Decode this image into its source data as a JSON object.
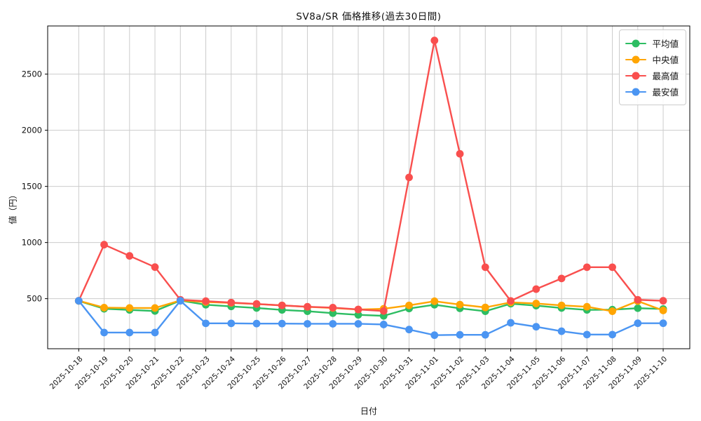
{
  "title": "SV8a/SR 価格推移(過去30日間)",
  "xlabel": "日付",
  "ylabel": "値（円）",
  "chart_data": {
    "type": "line",
    "x": [
      "2025-10-18",
      "2025-10-19",
      "2025-10-20",
      "2025-10-21",
      "2025-10-22",
      "2025-10-23",
      "2025-10-24",
      "2025-10-25",
      "2025-10-26",
      "2025-10-27",
      "2025-10-28",
      "2025-10-29",
      "2025-10-30",
      "2025-10-31",
      "2025-11-01",
      "2025-11-02",
      "2025-11-03",
      "2025-11-04",
      "2025-11-05",
      "2025-11-06",
      "2025-11-07",
      "2025-11-08",
      "2025-11-09",
      "2025-11-10"
    ],
    "series": [
      {
        "name": "平均値",
        "color": "#2dbd62",
        "values": [
          480,
          410,
          400,
          390,
          483,
          446,
          431,
          417,
          400,
          388,
          371,
          356,
          347,
          412,
          446,
          414,
          388,
          455,
          438,
          417,
          400,
          402,
          415,
          408
        ]
      },
      {
        "name": "中央値",
        "color": "#ffa502",
        "values": [
          481,
          420,
          417,
          417,
          484,
          470,
          462,
          452,
          440,
          427,
          417,
          403,
          410,
          440,
          477,
          447,
          422,
          467,
          457,
          440,
          428,
          388,
          478,
          395
        ]
      },
      {
        "name": "最高値",
        "color": "#f94f4e",
        "values": [
          481,
          981,
          881,
          781,
          490,
          478,
          465,
          453,
          440,
          428,
          420,
          404,
          390,
          1580,
          2800,
          1790,
          780,
          480,
          585,
          680,
          780,
          780,
          490,
          481
        ]
      },
      {
        "name": "最安値",
        "color": "#4b95f2",
        "values": [
          481,
          198,
          198,
          198,
          481,
          280,
          280,
          278,
          278,
          276,
          276,
          276,
          270,
          225,
          175,
          178,
          178,
          285,
          250,
          210,
          180,
          180,
          281,
          281
        ]
      }
    ],
    "yticks": [
      500,
      1000,
      1500,
      2000,
      2500
    ],
    "ylim": [
      54,
      2929
    ],
    "grid": true,
    "legend_position": "upper right",
    "grid_color": "#cccccc",
    "spine_color": "#000000"
  }
}
